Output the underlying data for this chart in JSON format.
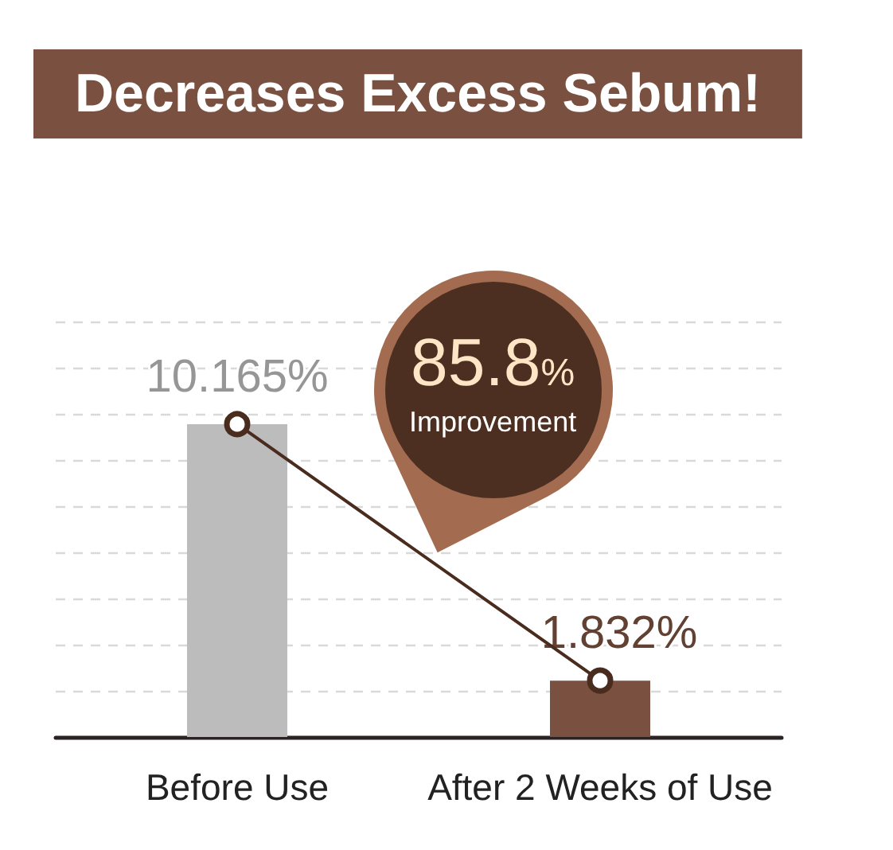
{
  "chart_data": {
    "type": "bar",
    "title": "Decreases Excess Sebum!",
    "categories": [
      "Before Use",
      "After 2 Weeks of Use"
    ],
    "series": [
      {
        "colors": [
          "#bcbcbc",
          "#7a5140"
        ],
        "values": [
          10.165,
          1.832
        ],
        "value_labels": [
          "10.165%",
          "1.832%"
        ]
      },
      {
        "type": "line",
        "color": "#4a2c1f",
        "values": [
          10.165,
          1.832
        ]
      }
    ],
    "ylim": [
      0,
      13.5
    ],
    "yticks": [
      {
        "value": 0,
        "label": null
      },
      {
        "value": 1.5,
        "label": null
      },
      {
        "value": 3,
        "label": null
      },
      {
        "value": 4.5,
        "label": null
      },
      {
        "value": 6,
        "label": null
      },
      {
        "value": 7.5,
        "label": null
      },
      {
        "value": 9,
        "label": null
      },
      {
        "value": 10.5,
        "label": null
      },
      {
        "value": 12,
        "label": null
      },
      {
        "value": 13.5,
        "label": null
      }
    ],
    "grid": "y",
    "tick_labels": "x",
    "marker": "circle",
    "annotations": [
      "85.8%",
      "Improvement"
    ]
  }
}
